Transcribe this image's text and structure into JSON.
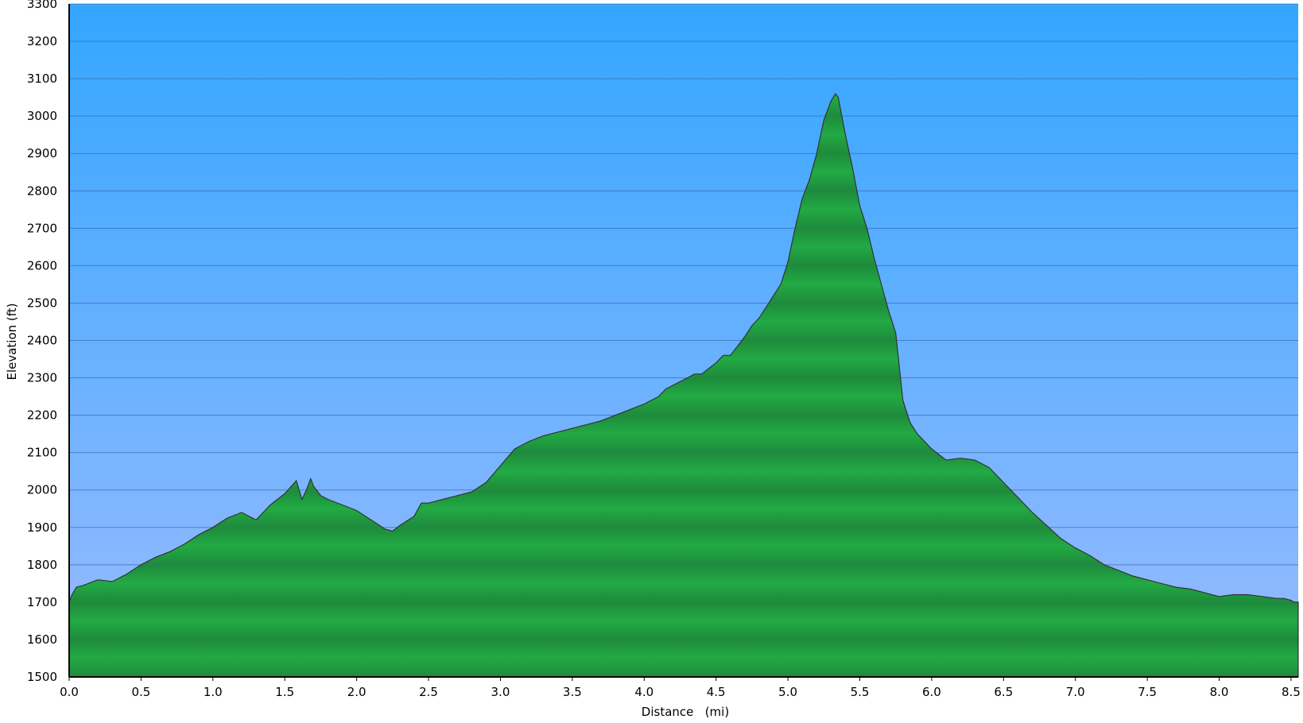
{
  "chart_data": {
    "type": "area",
    "title": "",
    "xlabel": "Distance   (mi)",
    "ylabel": "Elevation (ft)",
    "xlim": [
      0,
      8.55
    ],
    "ylim": [
      1500,
      3300
    ],
    "x_ticks": [
      "0.0",
      "0.5",
      "1.0",
      "1.5",
      "2.0",
      "2.5",
      "3.0",
      "3.5",
      "4.0",
      "4.5",
      "5.0",
      "5.5",
      "6.0",
      "6.5",
      "7.0",
      "7.5",
      "8.0",
      "8.5"
    ],
    "y_ticks": [
      "1500",
      "1600",
      "1700",
      "1800",
      "1900",
      "2000",
      "2100",
      "2200",
      "2300",
      "2400",
      "2500",
      "2600",
      "2700",
      "2800",
      "2900",
      "3000",
      "3100",
      "3200",
      "3300"
    ],
    "grid": true,
    "series": [
      {
        "x": [
          0.0,
          0.02,
          0.05,
          0.1,
          0.2,
          0.3,
          0.4,
          0.5,
          0.6,
          0.7,
          0.8,
          0.9,
          1.0,
          1.1,
          1.2,
          1.3,
          1.4,
          1.5,
          1.58,
          1.62,
          1.65,
          1.68,
          1.7,
          1.75,
          1.8,
          1.9,
          2.0,
          2.1,
          2.2,
          2.25,
          2.3,
          2.4,
          2.45,
          2.5,
          2.6,
          2.7,
          2.8,
          2.9,
          3.0,
          3.1,
          3.2,
          3.3,
          3.4,
          3.5,
          3.6,
          3.7,
          3.8,
          3.9,
          4.0,
          4.1,
          4.15,
          4.2,
          4.3,
          4.35,
          4.4,
          4.5,
          4.55,
          4.6,
          4.65,
          4.7,
          4.75,
          4.8,
          4.85,
          4.9,
          4.95,
          5.0,
          5.05,
          5.1,
          5.15,
          5.2,
          5.25,
          5.3,
          5.33,
          5.35,
          5.4,
          5.45,
          5.5,
          5.55,
          5.6,
          5.65,
          5.7,
          5.75,
          5.8,
          5.85,
          5.9,
          6.0,
          6.1,
          6.2,
          6.3,
          6.4,
          6.5,
          6.6,
          6.7,
          6.8,
          6.9,
          7.0,
          7.1,
          7.2,
          7.3,
          7.4,
          7.5,
          7.6,
          7.7,
          7.8,
          7.9,
          8.0,
          8.1,
          8.2,
          8.3,
          8.4,
          8.45,
          8.5,
          8.52,
          8.55
        ],
        "y": [
          1700,
          1720,
          1740,
          1745,
          1760,
          1755,
          1775,
          1800,
          1820,
          1835,
          1855,
          1880,
          1900,
          1925,
          1940,
          1920,
          1960,
          1990,
          2025,
          1975,
          2000,
          2030,
          2010,
          1985,
          1975,
          1960,
          1945,
          1920,
          1895,
          1890,
          1905,
          1930,
          1965,
          1965,
          1975,
          1985,
          1995,
          2020,
          2065,
          2110,
          2130,
          2145,
          2155,
          2165,
          2175,
          2185,
          2200,
          2215,
          2230,
          2250,
          2270,
          2280,
          2300,
          2310,
          2310,
          2340,
          2360,
          2360,
          2385,
          2410,
          2440,
          2460,
          2490,
          2520,
          2550,
          2610,
          2700,
          2780,
          2830,
          2900,
          2990,
          3040,
          3060,
          3050,
          2950,
          2860,
          2760,
          2700,
          2620,
          2550,
          2480,
          2420,
          2240,
          2180,
          2150,
          2110,
          2080,
          2085,
          2080,
          2060,
          2020,
          1980,
          1940,
          1905,
          1870,
          1845,
          1825,
          1800,
          1785,
          1770,
          1760,
          1750,
          1740,
          1735,
          1725,
          1715,
          1720,
          1720,
          1715,
          1710,
          1710,
          1705,
          1700,
          1700
        ]
      }
    ],
    "colors": {
      "sky_top": "#33a6ff",
      "sky_bottom": "#99bbff",
      "fill_light": "#22aa44",
      "fill_dark": "#1e8a3c",
      "outline": "#333333",
      "grid": "#3a6aa6"
    }
  }
}
